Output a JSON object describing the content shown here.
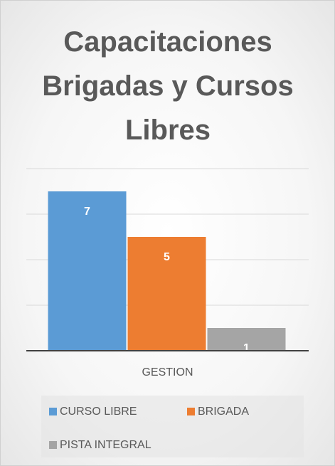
{
  "chart_data": {
    "type": "bar",
    "title": "Capacitaciones Brigadas y Cursos Libres",
    "categories": [
      "GESTION"
    ],
    "series": [
      {
        "name": "CURSO LIBRE",
        "color": "#5b9bd5",
        "values": [
          7
        ]
      },
      {
        "name": "BRIGADA",
        "color": "#ed7d31",
        "values": [
          5
        ]
      },
      {
        "name": "PISTA INTEGRAL",
        "color": "#a5a5a5",
        "values": [
          1
        ]
      }
    ],
    "ylim": [
      0,
      8
    ],
    "yticks": [
      0,
      2,
      4,
      6,
      8
    ],
    "grid": true
  }
}
